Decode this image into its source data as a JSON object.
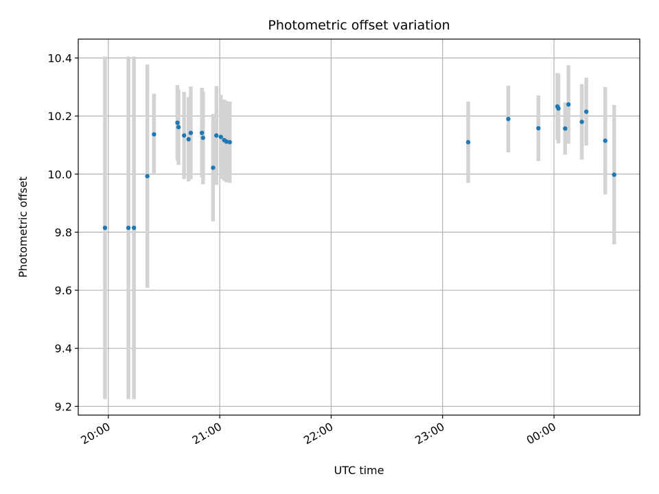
{
  "chart_data": {
    "type": "scatter",
    "title": "Photometric offset variation",
    "xlabel": "UTC time",
    "ylabel": "Photometric offset",
    "x_unit": "UTC hours (values past 24 are after midnight)",
    "xlim": [
      19.73,
      24.77
    ],
    "ylim": [
      9.17,
      10.465
    ],
    "x_ticks": [
      {
        "value": 20,
        "label": "20:00"
      },
      {
        "value": 21,
        "label": "21:00"
      },
      {
        "value": 22,
        "label": "22:00"
      },
      {
        "value": 23,
        "label": "23:00"
      },
      {
        "value": 24,
        "label": "00:00"
      }
    ],
    "y_ticks": [
      {
        "value": 9.2,
        "label": "9.2"
      },
      {
        "value": 9.4,
        "label": "9.4"
      },
      {
        "value": 9.6,
        "label": "9.6"
      },
      {
        "value": 9.8,
        "label": "9.8"
      },
      {
        "value": 10.0,
        "label": "10.0"
      },
      {
        "value": 10.2,
        "label": "10.2"
      },
      {
        "value": 10.4,
        "label": "10.4"
      }
    ],
    "grid": true,
    "marker_color": "#1f77b4",
    "errorbar_color": "#d3d3d3",
    "points": [
      {
        "x": 19.97,
        "y": 9.815,
        "err": 0.59
      },
      {
        "x": 20.18,
        "y": 9.815,
        "err": 0.59
      },
      {
        "x": 20.23,
        "y": 9.815,
        "err": 0.59
      },
      {
        "x": 20.35,
        "y": 9.993,
        "err": 0.385
      },
      {
        "x": 20.41,
        "y": 10.137,
        "err": 0.14
      },
      {
        "x": 20.62,
        "y": 10.177,
        "err": 0.13
      },
      {
        "x": 20.63,
        "y": 10.162,
        "err": 0.13
      },
      {
        "x": 20.68,
        "y": 10.133,
        "err": 0.15
      },
      {
        "x": 20.72,
        "y": 10.12,
        "err": 0.145
      },
      {
        "x": 20.74,
        "y": 10.142,
        "err": 0.16
      },
      {
        "x": 20.84,
        "y": 10.142,
        "err": 0.155
      },
      {
        "x": 20.85,
        "y": 10.125,
        "err": 0.16
      },
      {
        "x": 20.94,
        "y": 10.022,
        "err": 0.185
      },
      {
        "x": 20.97,
        "y": 10.133,
        "err": 0.17
      },
      {
        "x": 21.01,
        "y": 10.128,
        "err": 0.145
      },
      {
        "x": 21.04,
        "y": 10.117,
        "err": 0.14
      },
      {
        "x": 21.06,
        "y": 10.112,
        "err": 0.14
      },
      {
        "x": 21.09,
        "y": 10.11,
        "err": 0.14
      },
      {
        "x": 23.23,
        "y": 10.11,
        "err": 0.14
      },
      {
        "x": 23.59,
        "y": 10.19,
        "err": 0.115
      },
      {
        "x": 23.86,
        "y": 10.158,
        "err": 0.113
      },
      {
        "x": 24.03,
        "y": 10.233,
        "err": 0.115
      },
      {
        "x": 24.04,
        "y": 10.226,
        "err": 0.12
      },
      {
        "x": 24.1,
        "y": 10.157,
        "err": 0.09
      },
      {
        "x": 24.13,
        "y": 10.24,
        "err": 0.135
      },
      {
        "x": 24.25,
        "y": 10.18,
        "err": 0.13
      },
      {
        "x": 24.29,
        "y": 10.215,
        "err": 0.117
      },
      {
        "x": 24.46,
        "y": 10.115,
        "err": 0.185
      },
      {
        "x": 24.54,
        "y": 9.998,
        "err": 0.24
      }
    ]
  }
}
